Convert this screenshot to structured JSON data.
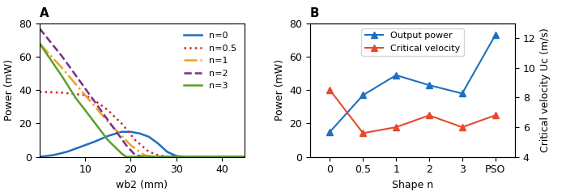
{
  "chart_data": [
    {
      "type": "line",
      "title": "A",
      "x_label": "wb2 (mm)",
      "y_label": "Power (mW)",
      "xlim": [
        0,
        45
      ],
      "xticks": [
        10,
        20,
        30,
        40
      ],
      "ylim": [
        0,
        80
      ],
      "yticks": [
        0,
        20,
        40,
        60,
        80
      ],
      "legend": "upper right",
      "series": [
        {
          "name": "n=0",
          "color": "#1f6fc0",
          "line_style": "solid",
          "x": [
            0,
            3,
            6,
            9,
            12,
            15,
            18,
            20,
            22,
            24,
            26,
            28,
            30,
            32,
            45
          ],
          "values": [
            0,
            1,
            3,
            6,
            9,
            12.5,
            15,
            15,
            14,
            12,
            8,
            3,
            0.5,
            0,
            0
          ]
        },
        {
          "name": "n=0.5",
          "color": "#d62728",
          "line_style": "dotted",
          "x": [
            0,
            5,
            10,
            12,
            15,
            18,
            21,
            24,
            26,
            28,
            45
          ],
          "values": [
            39,
            38.5,
            37,
            34,
            28,
            20,
            10,
            3,
            1,
            0,
            0
          ]
        },
        {
          "name": "n=1",
          "color": "#f0a020",
          "line_style": "dashdot",
          "x": [
            0,
            5,
            10,
            15,
            20,
            23,
            25,
            45
          ],
          "values": [
            68,
            53,
            37,
            21,
            7,
            1,
            0,
            0
          ]
        },
        {
          "name": "n=2",
          "color": "#7b2d8e",
          "line_style": "dashed",
          "x": [
            0,
            5,
            10,
            15,
            19,
            21,
            23,
            45
          ],
          "values": [
            77,
            60,
            41,
            22,
            7,
            1,
            0,
            0
          ]
        },
        {
          "name": "n=3",
          "color": "#5aa02c",
          "line_style": "solid",
          "x": [
            0,
            5,
            8,
            10,
            15,
            18,
            19,
            45
          ],
          "values": [
            68,
            48,
            35,
            28,
            10,
            2,
            0,
            0
          ]
        }
      ]
    },
    {
      "type": "line",
      "title": "B",
      "x_label": "Shape n",
      "y_label": "Power (mW)",
      "y2_label": "Critical velocity Uc (m/s)",
      "categories": [
        "0",
        "0.5",
        "1",
        "2",
        "3",
        "PSO"
      ],
      "ylim": [
        0,
        80
      ],
      "yticks": [
        0,
        20,
        40,
        60,
        80
      ],
      "y2lim": [
        4,
        13
      ],
      "y2ticks": [
        4,
        6,
        8,
        10,
        12
      ],
      "legend": "upper center",
      "series": [
        {
          "name": "Output power",
          "color": "#1f6fc0",
          "marker": "^",
          "line_style": "solid",
          "values": [
            15,
            37,
            49,
            43,
            38,
            73
          ]
        },
        {
          "name": "Critical velocity",
          "color": "#e64a2e",
          "marker": "^",
          "line_style": "solid",
          "axis": "y2",
          "values": [
            8.5,
            5.6,
            6.0,
            6.8,
            6.0,
            6.8
          ]
        }
      ]
    }
  ]
}
